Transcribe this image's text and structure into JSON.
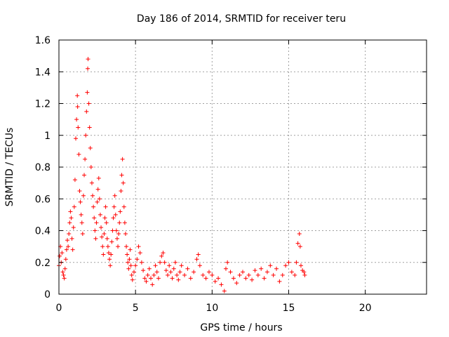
{
  "chart_data": {
    "type": "scatter",
    "title": "Day 186 of 2014, SRMTID for receiver teru",
    "xlabel": "GPS time / hours",
    "ylabel": "SRMTID / TECUs",
    "xlim": [
      0,
      24
    ],
    "ylim": [
      0,
      1.6
    ],
    "grid": true,
    "marker": "+",
    "color": "#ff0000",
    "xticks": [
      0,
      5,
      10,
      15,
      20
    ],
    "yticks": [
      0,
      0.2,
      0.4,
      0.6,
      0.8,
      1,
      1.2,
      1.4,
      1.6
    ],
    "xtick_labels": [
      "0",
      "5",
      "10",
      "15",
      "20"
    ],
    "ytick_labels": [
      "0",
      "0.2",
      "0.4",
      "0.6",
      "0.8",
      "1",
      "1.2",
      "1.4",
      "1.6"
    ],
    "series": [
      {
        "name": "SRMTID",
        "points": [
          [
            0.0,
            0.18
          ],
          [
            0.05,
            0.24
          ],
          [
            0.1,
            0.3
          ],
          [
            0.15,
            0.2
          ],
          [
            0.2,
            0.26
          ],
          [
            0.25,
            0.14
          ],
          [
            0.3,
            0.12
          ],
          [
            0.35,
            0.1
          ],
          [
            0.4,
            0.16
          ],
          [
            0.45,
            0.22
          ],
          [
            0.5,
            0.28
          ],
          [
            0.55,
            0.34
          ],
          [
            0.6,
            0.3
          ],
          [
            0.65,
            0.38
          ],
          [
            0.7,
            0.45
          ],
          [
            0.75,
            0.52
          ],
          [
            0.8,
            0.48
          ],
          [
            0.85,
            0.35
          ],
          [
            0.9,
            0.28
          ],
          [
            0.95,
            0.42
          ],
          [
            1.0,
            0.55
          ],
          [
            1.05,
            0.72
          ],
          [
            1.1,
            0.98
          ],
          [
            1.15,
            1.1
          ],
          [
            1.2,
            1.25
          ],
          [
            1.22,
            1.18
          ],
          [
            1.25,
            1.05
          ],
          [
            1.3,
            0.88
          ],
          [
            1.35,
            0.65
          ],
          [
            1.4,
            0.58
          ],
          [
            1.45,
            0.5
          ],
          [
            1.5,
            0.45
          ],
          [
            1.55,
            0.38
          ],
          [
            1.6,
            0.62
          ],
          [
            1.65,
            0.75
          ],
          [
            1.7,
            0.85
          ],
          [
            1.75,
            1.0
          ],
          [
            1.8,
            1.15
          ],
          [
            1.85,
            1.27
          ],
          [
            1.88,
            1.42
          ],
          [
            1.9,
            1.48
          ],
          [
            1.95,
            1.2
          ],
          [
            2.0,
            1.05
          ],
          [
            2.05,
            0.92
          ],
          [
            2.1,
            0.8
          ],
          [
            2.15,
            0.7
          ],
          [
            2.2,
            0.62
          ],
          [
            2.25,
            0.55
          ],
          [
            2.3,
            0.48
          ],
          [
            2.35,
            0.4
          ],
          [
            2.4,
            0.35
          ],
          [
            2.45,
            0.45
          ],
          [
            2.5,
            0.58
          ],
          [
            2.55,
            0.66
          ],
          [
            2.6,
            0.73
          ],
          [
            2.65,
            0.6
          ],
          [
            2.7,
            0.5
          ],
          [
            2.75,
            0.42
          ],
          [
            2.8,
            0.36
          ],
          [
            2.85,
            0.3
          ],
          [
            2.9,
            0.25
          ],
          [
            2.95,
            0.38
          ],
          [
            3.0,
            0.48
          ],
          [
            3.05,
            0.55
          ],
          [
            3.1,
            0.45
          ],
          [
            3.15,
            0.35
          ],
          [
            3.2,
            0.3
          ],
          [
            3.25,
            0.26
          ],
          [
            3.3,
            0.22
          ],
          [
            3.35,
            0.18
          ],
          [
            3.4,
            0.25
          ],
          [
            3.45,
            0.33
          ],
          [
            3.5,
            0.4
          ],
          [
            3.55,
            0.48
          ],
          [
            3.6,
            0.55
          ],
          [
            3.65,
            0.62
          ],
          [
            3.7,
            0.5
          ],
          [
            3.75,
            0.4
          ],
          [
            3.8,
            0.35
          ],
          [
            3.85,
            0.3
          ],
          [
            3.9,
            0.38
          ],
          [
            3.95,
            0.45
          ],
          [
            4.0,
            0.52
          ],
          [
            4.05,
            0.65
          ],
          [
            4.1,
            0.75
          ],
          [
            4.15,
            0.85
          ],
          [
            4.2,
            0.7
          ],
          [
            4.25,
            0.55
          ],
          [
            4.3,
            0.45
          ],
          [
            4.35,
            0.38
          ],
          [
            4.4,
            0.3
          ],
          [
            4.45,
            0.25
          ],
          [
            4.5,
            0.2
          ],
          [
            4.55,
            0.16
          ],
          [
            4.6,
            0.22
          ],
          [
            4.65,
            0.28
          ],
          [
            4.7,
            0.18
          ],
          [
            4.75,
            0.12
          ],
          [
            4.8,
            0.09
          ],
          [
            4.9,
            0.14
          ],
          [
            5.0,
            0.18
          ],
          [
            5.1,
            0.22
          ],
          [
            5.2,
            0.3
          ],
          [
            5.3,
            0.26
          ],
          [
            5.4,
            0.2
          ],
          [
            5.5,
            0.15
          ],
          [
            5.6,
            0.1
          ],
          [
            5.7,
            0.08
          ],
          [
            5.8,
            0.12
          ],
          [
            5.9,
            0.16
          ],
          [
            6.0,
            0.1
          ],
          [
            6.1,
            0.06
          ],
          [
            6.2,
            0.12
          ],
          [
            6.3,
            0.18
          ],
          [
            6.4,
            0.14
          ],
          [
            6.5,
            0.1
          ],
          [
            6.6,
            0.2
          ],
          [
            6.7,
            0.24
          ],
          [
            6.8,
            0.26
          ],
          [
            6.9,
            0.2
          ],
          [
            7.0,
            0.15
          ],
          [
            7.1,
            0.12
          ],
          [
            7.2,
            0.18
          ],
          [
            7.3,
            0.14
          ],
          [
            7.4,
            0.1
          ],
          [
            7.5,
            0.16
          ],
          [
            7.6,
            0.2
          ],
          [
            7.7,
            0.12
          ],
          [
            7.8,
            0.09
          ],
          [
            7.9,
            0.14
          ],
          [
            8.0,
            0.18
          ],
          [
            8.2,
            0.12
          ],
          [
            8.4,
            0.16
          ],
          [
            8.6,
            0.1
          ],
          [
            8.8,
            0.14
          ],
          [
            9.0,
            0.22
          ],
          [
            9.1,
            0.25
          ],
          [
            9.2,
            0.18
          ],
          [
            9.4,
            0.12
          ],
          [
            9.6,
            0.1
          ],
          [
            9.8,
            0.14
          ],
          [
            10.0,
            0.12
          ],
          [
            10.2,
            0.08
          ],
          [
            10.4,
            0.1
          ],
          [
            10.6,
            0.06
          ],
          [
            10.8,
            0.02
          ],
          [
            10.9,
            0.16
          ],
          [
            11.0,
            0.2
          ],
          [
            11.2,
            0.14
          ],
          [
            11.4,
            0.1
          ],
          [
            11.6,
            0.07
          ],
          [
            11.8,
            0.12
          ],
          [
            12.0,
            0.14
          ],
          [
            12.2,
            0.1
          ],
          [
            12.4,
            0.12
          ],
          [
            12.6,
            0.09
          ],
          [
            12.8,
            0.15
          ],
          [
            13.0,
            0.12
          ],
          [
            13.2,
            0.16
          ],
          [
            13.4,
            0.1
          ],
          [
            13.6,
            0.14
          ],
          [
            13.8,
            0.18
          ],
          [
            14.0,
            0.12
          ],
          [
            14.2,
            0.16
          ],
          [
            14.4,
            0.08
          ],
          [
            14.6,
            0.12
          ],
          [
            14.8,
            0.18
          ],
          [
            15.0,
            0.2
          ],
          [
            15.2,
            0.14
          ],
          [
            15.4,
            0.12
          ],
          [
            15.5,
            0.2
          ],
          [
            15.6,
            0.32
          ],
          [
            15.7,
            0.38
          ],
          [
            15.75,
            0.3
          ],
          [
            15.8,
            0.18
          ],
          [
            15.9,
            0.15
          ],
          [
            16.0,
            0.14
          ],
          [
            16.05,
            0.12
          ]
        ]
      }
    ]
  }
}
